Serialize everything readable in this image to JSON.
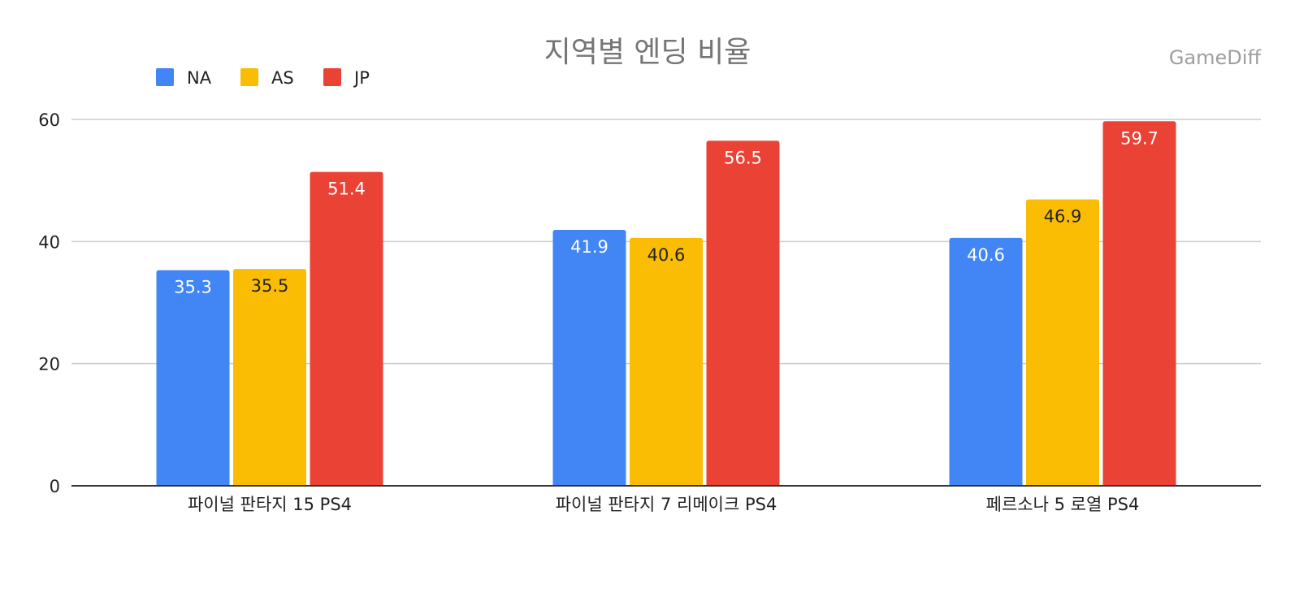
{
  "chart_data": {
    "type": "bar",
    "title": "지역별 엔딩 비율",
    "watermark": "GameDiff",
    "categories": [
      "파이널 판타지 15 PS4",
      "파이널 판타지 7 리메이크 PS4",
      "페르소나 5 로열 PS4"
    ],
    "series": [
      {
        "name": "NA",
        "color": "#4285f4",
        "label_color": "#ffffff",
        "values": [
          35.3,
          41.9,
          40.6
        ]
      },
      {
        "name": "AS",
        "color": "#fbbc04",
        "label_color": "#222222",
        "values": [
          35.5,
          40.6,
          46.9
        ]
      },
      {
        "name": "JP",
        "color": "#ea4335",
        "label_color": "#ffffff",
        "values": [
          51.4,
          56.5,
          59.7
        ]
      }
    ],
    "ylim": [
      0,
      60
    ],
    "yticks": [
      0,
      20,
      40,
      60
    ],
    "grid": true,
    "legend_position": "top-left"
  }
}
